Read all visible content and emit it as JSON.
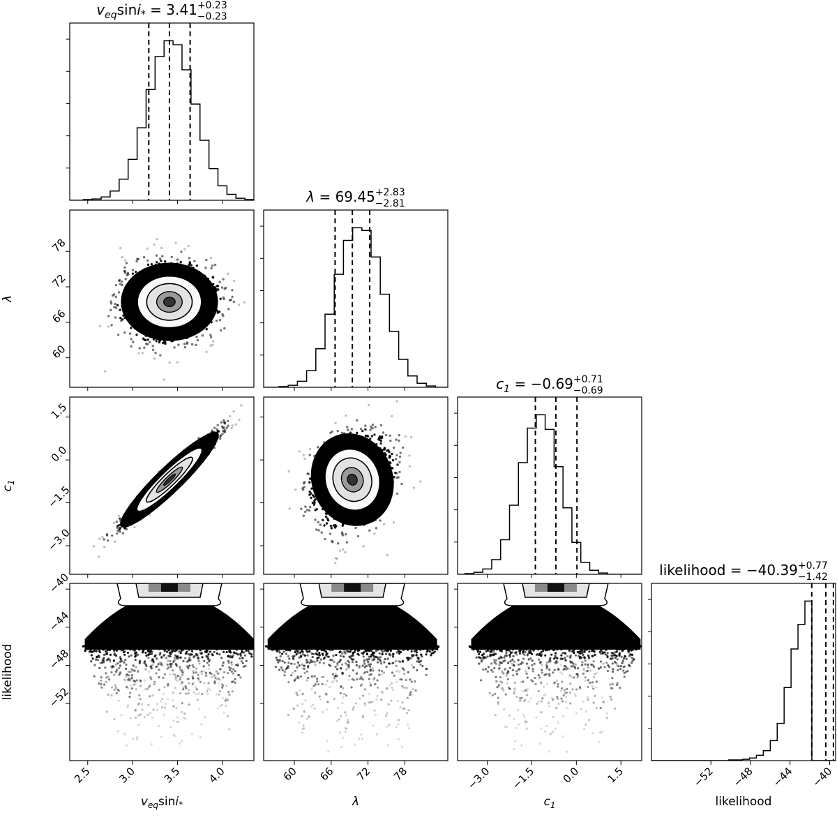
{
  "chart_data": {
    "type": "corner",
    "parameters": [
      {
        "label": "v_eq sin i_*",
        "median": 3.41,
        "err_plus": 0.23,
        "err_minus": 0.23,
        "range": [
          2.3,
          4.35
        ],
        "ticks": [
          2.5,
          3.0,
          3.5,
          4.0
        ]
      },
      {
        "label": "λ",
        "median": 69.45,
        "err_plus": 2.83,
        "err_minus": 2.81,
        "range": [
          55,
          85
        ],
        "ticks": [
          60,
          66,
          72,
          78
        ]
      },
      {
        "label": "c_1",
        "median": -0.69,
        "err_plus": 0.71,
        "err_minus": 0.69,
        "range": [
          -4.0,
          2.2
        ],
        "ticks": [
          -3.0,
          -1.5,
          0.0,
          1.5
        ]
      },
      {
        "label": "likelihood",
        "median": -40.39,
        "err_plus": 0.77,
        "err_minus": 1.42,
        "range": [
          -58,
          -39.4
        ],
        "ticks": [
          -52,
          -48,
          -44,
          -40
        ]
      }
    ],
    "titles": [
      {
        "prefix_italic": "v",
        "prefix_sub": "eq",
        "body": "sin",
        "italic_tail": "i",
        "tail_sub": "*",
        "value": " = 3.41",
        "sup": "+0.23",
        "sub": "−0.23"
      },
      {
        "prefix_italic": "λ",
        "value": " = 69.45",
        "sup": "+2.83",
        "sub": "−2.81"
      },
      {
        "prefix_italic": "c",
        "prefix_sub": "1",
        "value": " = −0.69",
        "sup": "+0.71",
        "sub": "−0.69"
      },
      {
        "body": "likelihood",
        "value": " = −40.39",
        "sup": "+0.77",
        "sub": "−1.42"
      }
    ],
    "xlabels": [
      "v_eq sin i_*",
      "λ",
      "c_1",
      "likelihood"
    ],
    "ylabels": [
      "",
      "λ",
      "c_1",
      "likelihood"
    ],
    "tick_labels": {
      "x0": [
        "2.5",
        "3.0",
        "3.5",
        "4.0"
      ],
      "x1": [
        "60",
        "66",
        "72",
        "78"
      ],
      "x2": [
        "−3.0",
        "−1.5",
        "0.0",
        "1.5"
      ],
      "x3": [
        "−52",
        "−48",
        "−44",
        "−40"
      ],
      "y1": [
        "60",
        "66",
        "72",
        "78"
      ],
      "y2": [
        "−3.0",
        "−1.5",
        "0.0",
        "1.5"
      ],
      "y3": [
        "−52",
        "−48",
        "−44",
        "−40"
      ]
    },
    "histograms": [
      {
        "edges_start": 2.45,
        "bin_width": 0.1,
        "counts": [
          1,
          2,
          5,
          14,
          32,
          62,
          110,
          168,
          218,
          242,
          236,
          198,
          146,
          91,
          48,
          22,
          9,
          3,
          1
        ]
      },
      {
        "edges_start": 57.5,
        "bin_width": 1.5,
        "counts": [
          1,
          3,
          9,
          25,
          58,
          110,
          170,
          221,
          240,
          236,
          196,
          140,
          84,
          42,
          17,
          6,
          2
        ]
      },
      {
        "edges_start": -3.75,
        "bin_width": 0.3,
        "counts": [
          1,
          3,
          8,
          22,
          52,
          104,
          168,
          220,
          240,
          218,
          162,
          100,
          48,
          18,
          6,
          2
        ]
      },
      {
        "edges_start": -56.5,
        "bin_width": 0.7,
        "counts": [
          0,
          0,
          0,
          0,
          0,
          0,
          0,
          0,
          0,
          1,
          1,
          2,
          4,
          8,
          15,
          30,
          56,
          110,
          168,
          205,
          240
        ]
      }
    ],
    "correlations": [
      [
        0,
        0,
        0,
        0
      ],
      [
        0.05,
        0,
        0,
        0
      ],
      [
        0.97,
        0.25,
        0,
        0
      ],
      [
        0,
        0,
        0,
        0
      ]
    ],
    "grid": false,
    "color": "#000000"
  }
}
